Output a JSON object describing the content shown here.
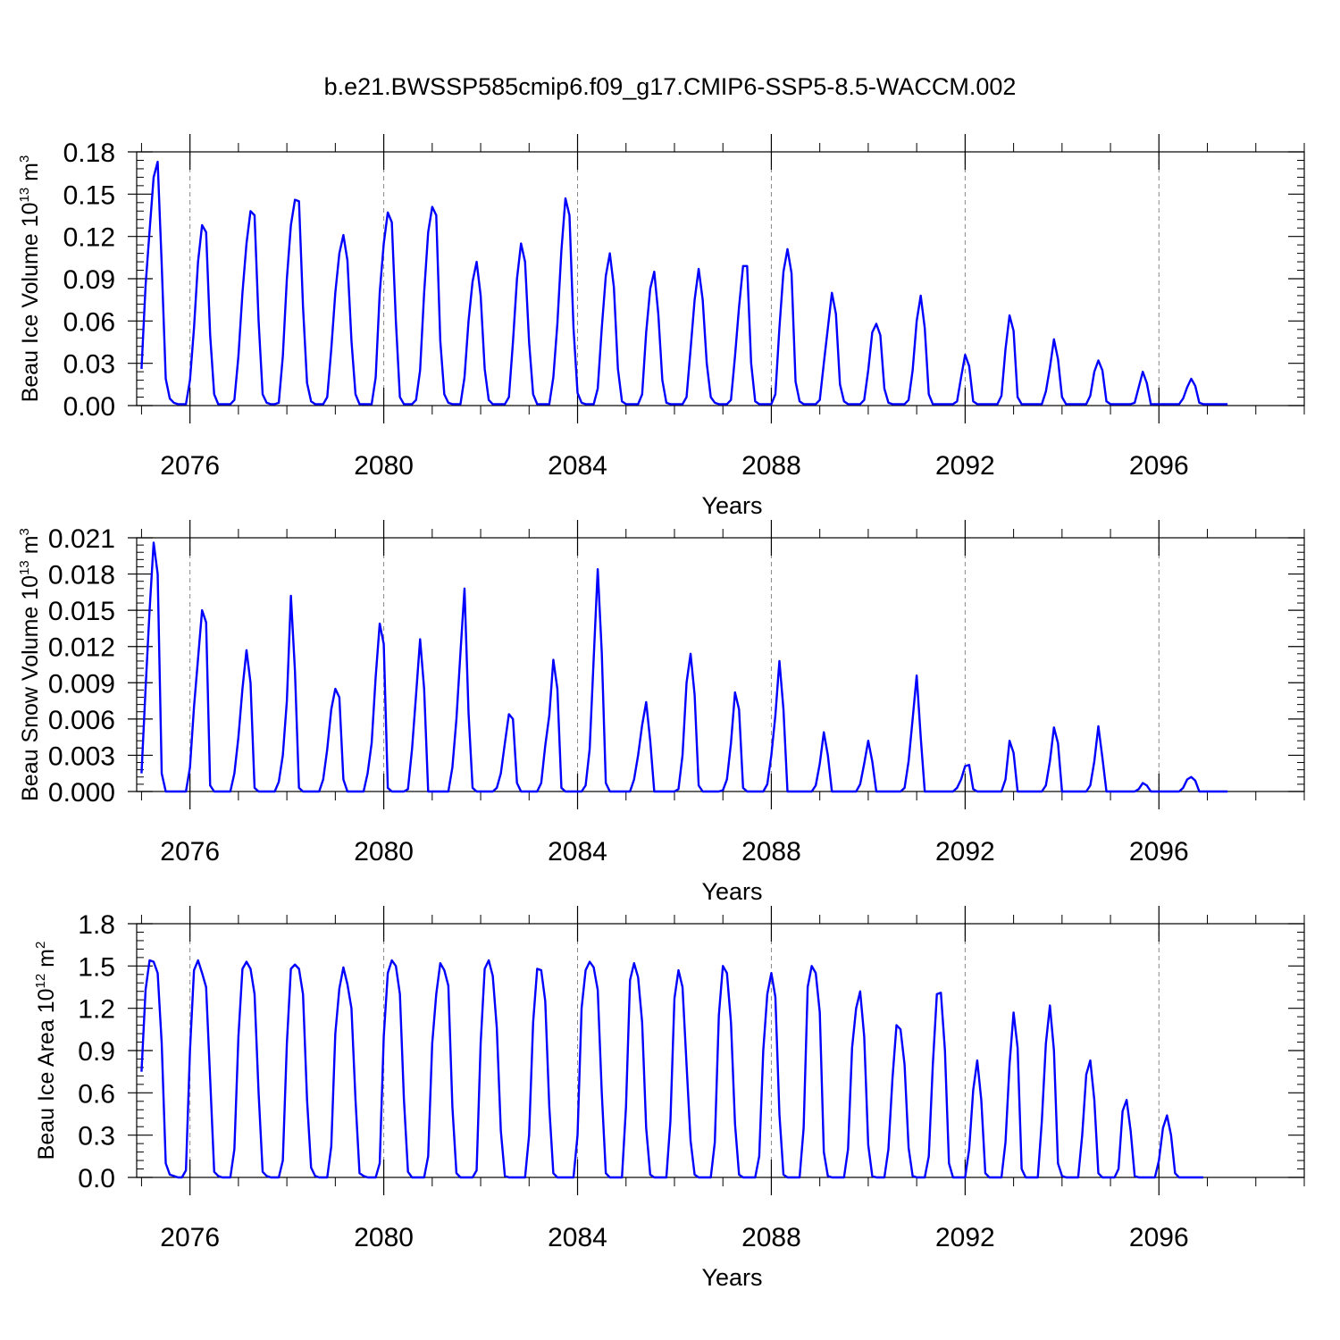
{
  "figure_title": "b.e21.BWSSP585cmip6.f09_g17.CMIP6-SSP5-8.5-WACCM.002",
  "series_color": "#0000ff",
  "chart_data": [
    {
      "type": "line",
      "ylabel": {
        "prefix": "Beau Ice Volume 10",
        "exp": "13",
        "unit": " m",
        "unit_exp": "3"
      },
      "xlabel": "Years",
      "ylim": [
        0,
        0.18
      ],
      "yticks": [
        "0.00",
        "0.03",
        "0.06",
        "0.09",
        "0.12",
        "0.15",
        "0.18"
      ],
      "xlim": [
        2074.9,
        2099.0
      ],
      "xticks": [
        "2076",
        "2080",
        "2084",
        "2088",
        "2092",
        "2096"
      ],
      "x_start": 2075.0,
      "x_step": 0.083333,
      "values": [
        0.026,
        0.085,
        0.124,
        0.162,
        0.173,
        0.1,
        0.019,
        0.005,
        0.002,
        0.001,
        0.001,
        0.001,
        0.018,
        0.055,
        0.102,
        0.128,
        0.123,
        0.05,
        0.008,
        0.001,
        0.001,
        0.001,
        0.001,
        0.004,
        0.035,
        0.08,
        0.115,
        0.138,
        0.135,
        0.06,
        0.008,
        0.002,
        0.001,
        0.001,
        0.002,
        0.035,
        0.09,
        0.128,
        0.146,
        0.145,
        0.07,
        0.016,
        0.003,
        0.001,
        0.001,
        0.001,
        0.006,
        0.04,
        0.08,
        0.108,
        0.121,
        0.103,
        0.046,
        0.008,
        0.001,
        0.001,
        0.001,
        0.001,
        0.02,
        0.08,
        0.115,
        0.137,
        0.13,
        0.06,
        0.006,
        0.001,
        0.001,
        0.001,
        0.004,
        0.025,
        0.08,
        0.123,
        0.141,
        0.135,
        0.046,
        0.008,
        0.002,
        0.001,
        0.001,
        0.001,
        0.02,
        0.06,
        0.088,
        0.102,
        0.078,
        0.026,
        0.004,
        0.001,
        0.001,
        0.001,
        0.001,
        0.006,
        0.045,
        0.09,
        0.115,
        0.102,
        0.045,
        0.008,
        0.001,
        0.001,
        0.001,
        0.001,
        0.02,
        0.058,
        0.11,
        0.147,
        0.135,
        0.055,
        0.009,
        0.002,
        0.001,
        0.001,
        0.001,
        0.012,
        0.055,
        0.092,
        0.108,
        0.084,
        0.026,
        0.003,
        0.001,
        0.001,
        0.001,
        0.001,
        0.008,
        0.052,
        0.083,
        0.095,
        0.065,
        0.018,
        0.002,
        0.001,
        0.001,
        0.001,
        0.001,
        0.006,
        0.04,
        0.075,
        0.097,
        0.075,
        0.03,
        0.006,
        0.002,
        0.001,
        0.001,
        0.001,
        0.004,
        0.035,
        0.07,
        0.099,
        0.099,
        0.03,
        0.003,
        0.001,
        0.001,
        0.001,
        0.001,
        0.008,
        0.055,
        0.095,
        0.111,
        0.094,
        0.017,
        0.003,
        0.001,
        0.001,
        0.001,
        0.001,
        0.004,
        0.03,
        0.055,
        0.08,
        0.065,
        0.015,
        0.003,
        0.001,
        0.001,
        0.001,
        0.001,
        0.004,
        0.025,
        0.052,
        0.058,
        0.05,
        0.012,
        0.002,
        0.001,
        0.001,
        0.001,
        0.001,
        0.004,
        0.025,
        0.06,
        0.078,
        0.055,
        0.008,
        0.001,
        0.001,
        0.001,
        0.001,
        0.001,
        0.001,
        0.003,
        0.02,
        0.036,
        0.028,
        0.003,
        0.001,
        0.001,
        0.001,
        0.001,
        0.001,
        0.001,
        0.007,
        0.04,
        0.064,
        0.053,
        0.006,
        0.001,
        0.001,
        0.001,
        0.001,
        0.001,
        0.001,
        0.01,
        0.027,
        0.047,
        0.033,
        0.006,
        0.001,
        0.001,
        0.001,
        0.001,
        0.001,
        0.001,
        0.007,
        0.024,
        0.032,
        0.025,
        0.003,
        0.001,
        0.001,
        0.001,
        0.001,
        0.001,
        0.001,
        0.002,
        0.013,
        0.024,
        0.016,
        0.001,
        0.001,
        0.001,
        0.001,
        0.001,
        0.001,
        0.001,
        0.001,
        0.005,
        0.013,
        0.019,
        0.014,
        0.002,
        0.001,
        0.001,
        0.001,
        0.001,
        0.001,
        0.001,
        0.001
      ]
    },
    {
      "type": "line",
      "ylabel": {
        "prefix": "Beau Snow Volume 10",
        "exp": "13",
        "unit": " m",
        "unit_exp": "3"
      },
      "xlabel": "Years",
      "ylim": [
        0,
        0.021
      ],
      "yticks": [
        "0.000",
        "0.003",
        "0.006",
        "0.009",
        "0.012",
        "0.015",
        "0.018",
        "0.021"
      ],
      "xlim": [
        2074.9,
        2099.0
      ],
      "xticks": [
        "2076",
        "2080",
        "2084",
        "2088",
        "2092",
        "2096"
      ],
      "x_start": 2075.0,
      "x_step": 0.083333,
      "values": [
        0.0015,
        0.0085,
        0.015,
        0.0206,
        0.018,
        0.0015,
        0.0,
        0.0,
        0.0,
        0.0,
        0.0,
        0.0,
        0.002,
        0.007,
        0.011,
        0.015,
        0.014,
        0.0005,
        0.0,
        0.0,
        0.0,
        0.0,
        0.0,
        0.0015,
        0.0045,
        0.0085,
        0.0117,
        0.009,
        0.0003,
        0.0,
        0.0,
        0.0,
        0.0,
        0.0,
        0.0008,
        0.003,
        0.0075,
        0.0162,
        0.01,
        0.0003,
        0.0,
        0.0,
        0.0,
        0.0,
        0.0,
        0.001,
        0.0035,
        0.0068,
        0.0085,
        0.0078,
        0.001,
        0.0,
        0.0,
        0.0,
        0.0,
        0.0,
        0.0015,
        0.004,
        0.0095,
        0.0139,
        0.0122,
        0.0003,
        0.0,
        0.0,
        0.0,
        0.0,
        0.0002,
        0.0035,
        0.008,
        0.0126,
        0.0085,
        0.0,
        0.0,
        0.0,
        0.0,
        0.0,
        0.0,
        0.002,
        0.006,
        0.0115,
        0.0168,
        0.0065,
        0.0003,
        0.0,
        0.0,
        0.0,
        0.0,
        0.0,
        0.0003,
        0.0015,
        0.004,
        0.0064,
        0.006,
        0.0007,
        0.0,
        0.0,
        0.0,
        0.0,
        0.0,
        0.0007,
        0.0038,
        0.0063,
        0.0109,
        0.0085,
        0.0003,
        0.0,
        0.0,
        0.0,
        0.0,
        0.0,
        0.0005,
        0.0035,
        0.011,
        0.0184,
        0.0115,
        0.0007,
        0.0,
        0.0,
        0.0,
        0.0,
        0.0,
        0.0,
        0.001,
        0.003,
        0.0055,
        0.0074,
        0.0042,
        0.0,
        0.0,
        0.0,
        0.0,
        0.0,
        0.0,
        0.0002,
        0.003,
        0.009,
        0.0114,
        0.008,
        0.0005,
        0.0,
        0.0,
        0.0,
        0.0,
        0.0,
        0.0001,
        0.001,
        0.004,
        0.0082,
        0.0068,
        0.0003,
        0.0,
        0.0,
        0.0,
        0.0,
        0.0,
        0.0006,
        0.003,
        0.0063,
        0.0108,
        0.0068,
        0.0,
        0.0,
        0.0,
        0.0,
        0.0,
        0.0,
        0.0,
        0.0005,
        0.0023,
        0.0049,
        0.003,
        0.0,
        0.0,
        0.0,
        0.0,
        0.0,
        0.0,
        0.0,
        0.0006,
        0.0023,
        0.0042,
        0.0025,
        0.0,
        0.0,
        0.0,
        0.0,
        0.0,
        0.0,
        0.0,
        0.0003,
        0.0025,
        0.006,
        0.0096,
        0.0045,
        0.0,
        0.0,
        0.0,
        0.0,
        0.0,
        0.0,
        0.0,
        0.0,
        0.0003,
        0.001,
        0.0021,
        0.0022,
        0.0002,
        0.0,
        0.0,
        0.0,
        0.0,
        0.0,
        0.0,
        0.0,
        0.001,
        0.0042,
        0.0032,
        0.0,
        0.0,
        0.0,
        0.0,
        0.0,
        0.0,
        0.0,
        0.0005,
        0.0025,
        0.0053,
        0.004,
        0.0,
        0.0,
        0.0,
        0.0,
        0.0,
        0.0,
        0.0,
        0.0005,
        0.0025,
        0.0054,
        0.0028,
        0.0,
        0.0,
        0.0,
        0.0,
        0.0,
        0.0,
        0.0,
        0.0,
        0.0002,
        0.0007,
        0.0005,
        0.0,
        0.0,
        0.0,
        0.0,
        0.0,
        0.0,
        0.0,
        0.0,
        0.0003,
        0.001,
        0.0012,
        0.0009,
        0.0,
        0.0,
        0.0,
        0.0,
        0.0,
        0.0,
        0.0,
        0.0
      ]
    },
    {
      "type": "line",
      "ylabel": {
        "prefix": "Beau Ice Area 10",
        "exp": "12",
        "unit": " m",
        "unit_exp": "2"
      },
      "xlabel": "Years",
      "ylim": [
        0,
        1.8
      ],
      "yticks": [
        "0.0",
        "0.3",
        "0.6",
        "0.9",
        "1.2",
        "1.5",
        "1.8"
      ],
      "xlim": [
        2074.9,
        2099.0
      ],
      "xticks": [
        "2076",
        "2080",
        "2084",
        "2088",
        "2092",
        "2096"
      ],
      "x_start": 2075.0,
      "x_step": 0.083333,
      "values": [
        0.75,
        1.33,
        1.54,
        1.53,
        1.45,
        0.95,
        0.1,
        0.02,
        0.01,
        0.0,
        0.0,
        0.05,
        0.9,
        1.47,
        1.54,
        1.45,
        1.35,
        0.7,
        0.04,
        0.01,
        0.0,
        0.0,
        0.0,
        0.2,
        1.0,
        1.48,
        1.53,
        1.48,
        1.3,
        0.6,
        0.04,
        0.01,
        0.0,
        0.0,
        0.0,
        0.12,
        0.95,
        1.48,
        1.51,
        1.48,
        1.3,
        0.55,
        0.07,
        0.01,
        0.0,
        0.0,
        0.0,
        0.22,
        1.02,
        1.34,
        1.49,
        1.37,
        1.2,
        0.55,
        0.03,
        0.01,
        0.0,
        0.0,
        0.0,
        0.1,
        1.0,
        1.45,
        1.54,
        1.5,
        1.3,
        0.55,
        0.04,
        0.0,
        0.0,
        0.0,
        0.0,
        0.15,
        0.95,
        1.3,
        1.52,
        1.47,
        1.36,
        0.5,
        0.03,
        0.0,
        0.0,
        0.0,
        0.0,
        0.05,
        0.95,
        1.48,
        1.54,
        1.43,
        1.06,
        0.33,
        0.01,
        0.0,
        0.0,
        0.0,
        0.0,
        0.0,
        0.3,
        1.1,
        1.48,
        1.47,
        1.25,
        0.5,
        0.03,
        0.0,
        0.0,
        0.0,
        0.0,
        0.0,
        0.3,
        1.2,
        1.47,
        1.53,
        1.49,
        1.33,
        0.6,
        0.03,
        0.0,
        0.0,
        0.0,
        0.0,
        0.5,
        1.4,
        1.52,
        1.42,
        1.1,
        0.35,
        0.02,
        0.0,
        0.0,
        0.0,
        0.0,
        0.4,
        1.27,
        1.47,
        1.35,
        0.8,
        0.26,
        0.02,
        0.0,
        0.0,
        0.0,
        0.0,
        0.25,
        1.15,
        1.5,
        1.45,
        1.1,
        0.38,
        0.02,
        0.0,
        0.0,
        0.0,
        0.0,
        0.15,
        0.9,
        1.3,
        1.45,
        1.28,
        0.45,
        0.02,
        0.0,
        0.0,
        0.0,
        0.0,
        0.35,
        1.35,
        1.5,
        1.45,
        1.17,
        0.18,
        0.01,
        0.0,
        0.0,
        0.0,
        0.0,
        0.2,
        0.92,
        1.2,
        1.32,
        1.0,
        0.23,
        0.01,
        0.0,
        0.0,
        0.0,
        0.2,
        0.7,
        1.08,
        1.05,
        0.8,
        0.21,
        0.01,
        0.0,
        0.0,
        0.0,
        0.15,
        0.8,
        1.3,
        1.31,
        0.9,
        0.1,
        0.0,
        0.0,
        0.0,
        0.0,
        0.2,
        0.62,
        0.83,
        0.55,
        0.03,
        0.0,
        0.0,
        0.0,
        0.0,
        0.25,
        0.8,
        1.17,
        0.92,
        0.06,
        0.0,
        0.0,
        0.0,
        0.0,
        0.4,
        0.95,
        1.22,
        0.9,
        0.1,
        0.01,
        0.0,
        0.0,
        0.0,
        0.0,
        0.3,
        0.73,
        0.83,
        0.55,
        0.03,
        0.0,
        0.0,
        0.0,
        0.0,
        0.06,
        0.47,
        0.55,
        0.33,
        0.01,
        0.0,
        0.0,
        0.0,
        0.0,
        0.0,
        0.12,
        0.35,
        0.44,
        0.3,
        0.03,
        0.0,
        0.0,
        0.0,
        0.0,
        0.0,
        0.0,
        0.0
      ]
    }
  ]
}
